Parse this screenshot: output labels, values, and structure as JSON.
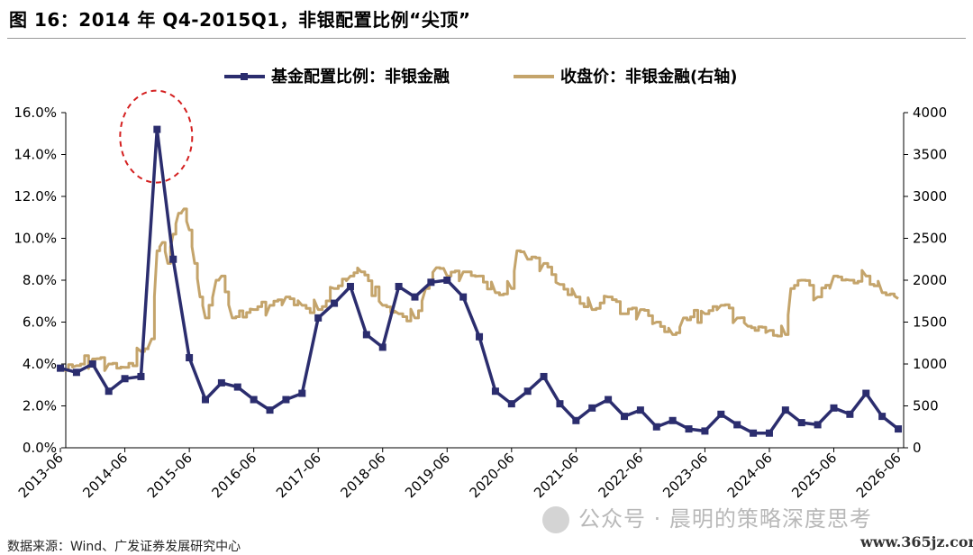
{
  "title": "图 16：2014 年 Q4-2015Q1，非银配置比例“尖顶”",
  "source_note": "数据来源：Wind、广发证券发展研究中心",
  "watermark": "公众号 · 晨明的策略深度思考",
  "site_mark": "www.365jz.com",
  "colors": {
    "allocation": "#2b2d6e",
    "price": "#c4a46b",
    "highlight": "#d42020"
  },
  "chart_data": {
    "type": "line",
    "x_ticks": [
      "2013-06",
      "2014-06",
      "2015-06",
      "2016-06",
      "2017-06",
      "2018-06",
      "2019-06",
      "2020-06",
      "2021-06",
      "2022-06",
      "2023-06",
      "2024-06",
      "2025-06",
      "2026-06"
    ],
    "y_left_ticks": [
      "0.0%",
      "2.0%",
      "4.0%",
      "6.0%",
      "8.0%",
      "10.0%",
      "12.0%",
      "14.0%",
      "16.0%"
    ],
    "y_right_ticks": [
      "0",
      "500",
      "1000",
      "1500",
      "2000",
      "2500",
      "3000",
      "3500",
      "4000"
    ],
    "ylim_left": [
      0,
      16
    ],
    "ylim_right": [
      0,
      4000
    ],
    "x_range": [
      2013.5,
      2026.5
    ],
    "legend_position": "top",
    "grid": false,
    "annotation": "circle highlighting peak at 2014-Q4",
    "series": [
      {
        "name": "基金配置比例：非银金融",
        "axis": "left",
        "marker": "square",
        "x": [
          "2013-06",
          "2013-09",
          "2013-12",
          "2014-03",
          "2014-06",
          "2014-09",
          "2014-12",
          "2015-03",
          "2015-06",
          "2015-09",
          "2015-12",
          "2016-03",
          "2016-06",
          "2016-09",
          "2016-12",
          "2017-03",
          "2017-06",
          "2017-09",
          "2017-12",
          "2018-03",
          "2018-06",
          "2018-09",
          "2018-12",
          "2019-03",
          "2019-06",
          "2019-09",
          "2019-12",
          "2020-03",
          "2020-06",
          "2020-09",
          "2020-12",
          "2021-03",
          "2021-06",
          "2021-09",
          "2021-12",
          "2022-03",
          "2022-06",
          "2022-09",
          "2022-12",
          "2023-03",
          "2023-06",
          "2023-09",
          "2023-12",
          "2024-03",
          "2024-06",
          "2024-09",
          "2024-12",
          "2025-03",
          "2025-06",
          "2025-09",
          "2025-12",
          "2026-03",
          "2026-06"
        ],
        "values": [
          3.8,
          3.6,
          4.0,
          2.7,
          3.3,
          3.4,
          15.2,
          9.0,
          4.3,
          2.3,
          3.1,
          2.9,
          2.3,
          1.8,
          2.3,
          2.6,
          6.2,
          6.9,
          7.7,
          5.4,
          4.8,
          7.7,
          7.2,
          7.9,
          8.0,
          7.2,
          5.3,
          2.7,
          2.1,
          2.7,
          3.4,
          2.1,
          1.3,
          1.9,
          2.3,
          1.5,
          1.8,
          1.0,
          1.3,
          0.9,
          0.8,
          1.6,
          1.1,
          0.7,
          0.7,
          1.8,
          1.2,
          1.1,
          1.9,
          1.6,
          2.6,
          1.5,
          0.9
        ]
      },
      {
        "name": "收盘价：非银金融(右轴)",
        "axis": "right",
        "marker": "none",
        "x": [
          "2013-06",
          "2013-09",
          "2013-12",
          "2014-03",
          "2014-06",
          "2014-09",
          "2014-11",
          "2014-12",
          "2015-01",
          "2015-02",
          "2015-03",
          "2015-04",
          "2015-05",
          "2015-06",
          "2015-07",
          "2015-08",
          "2015-09",
          "2015-11",
          "2015-12",
          "2016-02",
          "2016-06",
          "2016-09",
          "2016-12",
          "2017-03",
          "2017-06",
          "2017-09",
          "2017-12",
          "2018-02",
          "2018-06",
          "2018-09",
          "2018-12",
          "2019-02",
          "2019-04",
          "2019-06",
          "2019-09",
          "2019-12",
          "2020-03",
          "2020-06",
          "2020-07",
          "2020-09",
          "2020-12",
          "2021-03",
          "2021-06",
          "2021-09",
          "2021-12",
          "2022-03",
          "2022-06",
          "2022-09",
          "2022-12",
          "2023-02",
          "2023-06",
          "2023-09",
          "2023-12",
          "2024-02",
          "2024-06",
          "2024-09",
          "2024-10",
          "2024-12",
          "2025-03",
          "2025-06",
          "2025-09",
          "2025-12",
          "2026-03",
          "2026-06"
        ],
        "values": [
          930,
          980,
          1060,
          1000,
          960,
          1150,
          1300,
          2350,
          2450,
          2200,
          2550,
          2800,
          2850,
          2600,
          2200,
          1800,
          1550,
          2000,
          2050,
          1550,
          1650,
          1700,
          1800,
          1700,
          1650,
          1900,
          2050,
          2100,
          1700,
          1600,
          1550,
          1900,
          2150,
          2050,
          2100,
          2050,
          1850,
          1900,
          2350,
          2250,
          2200,
          1950,
          1800,
          1650,
          1800,
          1600,
          1650,
          1500,
          1350,
          1550,
          1600,
          1700,
          1550,
          1450,
          1400,
          1350,
          1900,
          2000,
          1800,
          2050,
          2000,
          2050,
          1850,
          1780
        ]
      }
    ]
  }
}
